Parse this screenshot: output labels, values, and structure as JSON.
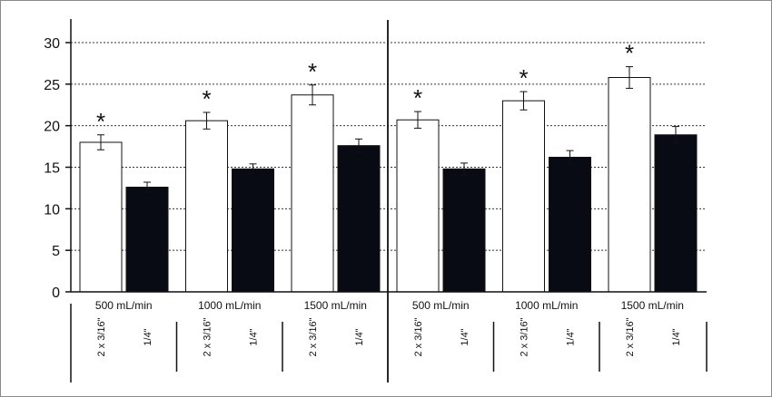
{
  "chart_data": {
    "type": "bar",
    "title": "",
    "xlabel": "",
    "ylabel": "",
    "ylim": [
      0,
      30
    ],
    "yticks": [
      0,
      5,
      10,
      15,
      20,
      25,
      30
    ],
    "grid": "horizontal-dotted",
    "series_names": [
      "2 x 3/16\"",
      "1/4\""
    ],
    "colors": {
      "2 x 3/16\"": "#ffffff",
      "1/4\"": "#080a14",
      "axis": "#111111",
      "grid": "#333333"
    },
    "panels": [
      {
        "groups": [
          {
            "label": "500 mL/min",
            "bars": [
              {
                "sub_label": "2 x 3/16\"",
                "value": 18.0,
                "error": 0.9,
                "marker": "*"
              },
              {
                "sub_label": "1/4\"",
                "value": 12.6,
                "error": 0.6,
                "marker": ""
              }
            ]
          },
          {
            "label": "1000 mL/min",
            "bars": [
              {
                "sub_label": "2 x 3/16\"",
                "value": 20.6,
                "error": 1.0,
                "marker": "*"
              },
              {
                "sub_label": "1/4\"",
                "value": 14.8,
                "error": 0.6,
                "marker": ""
              }
            ]
          },
          {
            "label": "1500 mL/min",
            "bars": [
              {
                "sub_label": "2 x 3/16\"",
                "value": 23.7,
                "error": 1.2,
                "marker": "*"
              },
              {
                "sub_label": "1/4\"",
                "value": 17.6,
                "error": 0.8,
                "marker": ""
              }
            ]
          }
        ]
      },
      {
        "groups": [
          {
            "label": "500 mL/min",
            "bars": [
              {
                "sub_label": "2 x 3/16\"",
                "value": 20.7,
                "error": 1.0,
                "marker": "*"
              },
              {
                "sub_label": "1/4\"",
                "value": 14.8,
                "error": 0.7,
                "marker": ""
              }
            ]
          },
          {
            "label": "1000 mL/min",
            "bars": [
              {
                "sub_label": "2 x 3/16\"",
                "value": 23.0,
                "error": 1.1,
                "marker": "*"
              },
              {
                "sub_label": "1/4\"",
                "value": 16.2,
                "error": 0.8,
                "marker": ""
              }
            ]
          },
          {
            "label": "1500 mL/min",
            "bars": [
              {
                "sub_label": "2 x 3/16\"",
                "value": 25.8,
                "error": 1.3,
                "marker": "*"
              },
              {
                "sub_label": "1/4\"",
                "value": 18.9,
                "error": 1.0,
                "marker": ""
              }
            ]
          }
        ]
      }
    ]
  }
}
